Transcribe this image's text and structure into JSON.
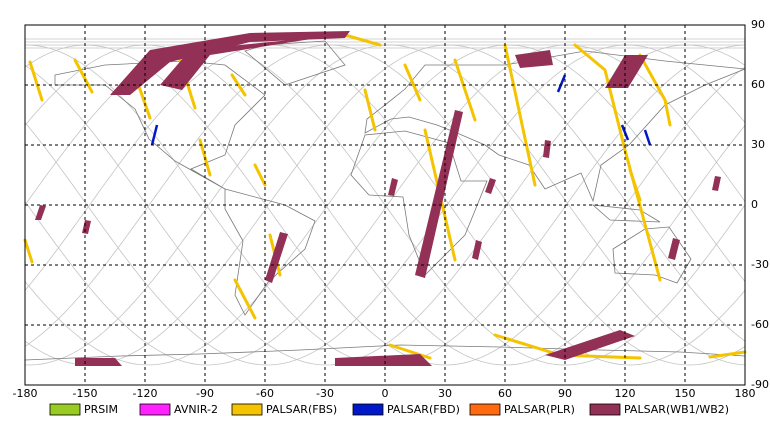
{
  "map": {
    "xlim": [
      -180,
      180
    ],
    "ylim": [
      -90,
      90
    ],
    "xticks": [
      -180,
      -150,
      -120,
      -90,
      -60,
      -30,
      0,
      30,
      60,
      90,
      120,
      150,
      180
    ],
    "yticks": [
      -90,
      -60,
      -30,
      0,
      30,
      60,
      90
    ]
  },
  "legend": [
    {
      "name": "PRSIM",
      "color": "#99cc22"
    },
    {
      "name": "AVNIR-2",
      "color": "#ff22ff"
    },
    {
      "name": "PALSAR(FBS)",
      "color": "#f4c400"
    },
    {
      "name": "PALSAR(FBD)",
      "color": "#0018c8"
    },
    {
      "name": "PALSAR(PLR)",
      "color": "#ff6a10"
    },
    {
      "name": "PALSAR(WB1/WB2)",
      "color": "#923056"
    }
  ]
}
